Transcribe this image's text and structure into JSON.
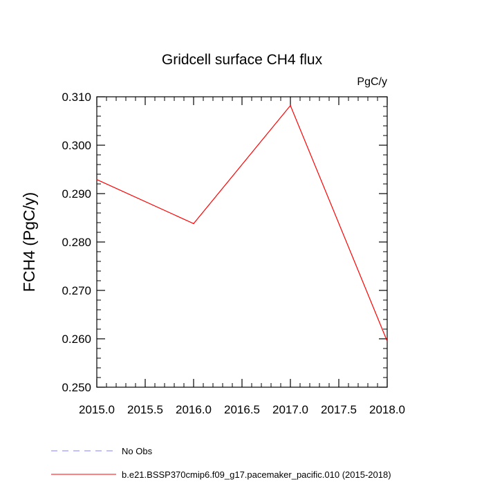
{
  "chart_data": {
    "type": "line",
    "title": "Gridcell surface CH4 flux",
    "units": "PgC/y",
    "ylabel": "FCH4  (PgC/y)",
    "xlabel": "",
    "xlim": [
      2015.0,
      2018.0
    ],
    "ylim": [
      0.25,
      0.31
    ],
    "x_ticks": [
      "2015.0",
      "2015.5",
      "2016.0",
      "2016.5",
      "2017.0",
      "2017.5",
      "2018.0"
    ],
    "y_ticks": [
      "0.250",
      "0.260",
      "0.270",
      "0.280",
      "0.290",
      "0.300",
      "0.310"
    ],
    "grid": false,
    "legend_position": "bottom",
    "series": [
      {
        "name": "No Obs",
        "color": "#8080ff",
        "style": "dashed",
        "x": [],
        "y": []
      },
      {
        "name": "b.e21.BSSP370cmip6.f09_g17.pacemaker_pacific.010 (2015-2018)",
        "color": "#ff0000",
        "style": "solid",
        "x": [
          2015,
          2016,
          2017,
          2018
        ],
        "y": [
          0.2929,
          0.2838,
          0.3082,
          0.2595
        ]
      }
    ]
  }
}
